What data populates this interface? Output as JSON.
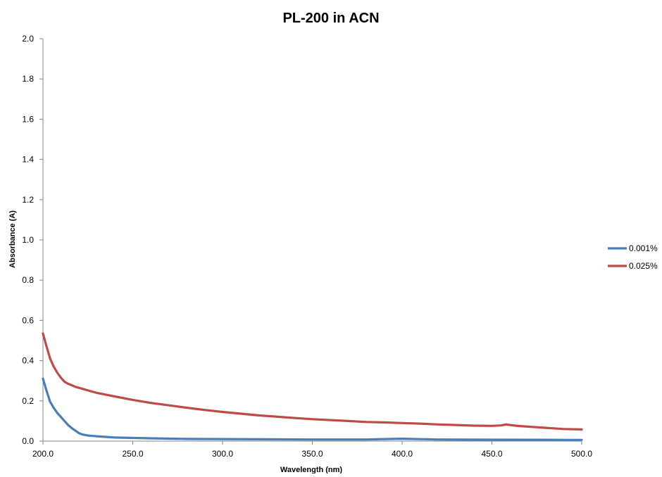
{
  "chart_data": {
    "type": "line",
    "title": "PL-200 in ACN",
    "xlabel": "Wavelength (nm)",
    "ylabel": "Absorbance (A)",
    "xlim": [
      200,
      500
    ],
    "ylim": [
      0,
      2
    ],
    "x_ticks": [
      "200.0",
      "250.0",
      "300.0",
      "350.0",
      "400.0",
      "450.0",
      "500.0"
    ],
    "y_ticks": [
      "0.0",
      "0.2",
      "0.4",
      "0.6",
      "0.8",
      "1.0",
      "1.2",
      "1.4",
      "1.6",
      "1.8",
      "2.0"
    ],
    "grid": false,
    "legend": "right",
    "series": [
      {
        "name": "0.001%",
        "color": "#4a7ebb",
        "x": [
          200,
          202,
          204,
          206,
          208,
          210,
          212,
          214,
          216,
          218,
          220,
          222,
          225,
          230,
          240,
          260,
          280,
          300,
          350,
          380,
          390,
          400,
          420,
          450,
          500
        ],
        "y": [
          0.31,
          0.25,
          0.195,
          0.165,
          0.14,
          0.12,
          0.1,
          0.08,
          0.065,
          0.052,
          0.04,
          0.033,
          0.028,
          0.024,
          0.018,
          0.014,
          0.011,
          0.01,
          0.008,
          0.008,
          0.01,
          0.012,
          0.008,
          0.007,
          0.006
        ]
      },
      {
        "name": "0.025%",
        "color": "#be4b48",
        "x": [
          200,
          202,
          204,
          206,
          208,
          210,
          212,
          214,
          216,
          218,
          220,
          225,
          230,
          240,
          250,
          260,
          270,
          280,
          290,
          300,
          320,
          340,
          350,
          370,
          380,
          390,
          400,
          410,
          420,
          430,
          440,
          450,
          455,
          458,
          460,
          465,
          470,
          480,
          490,
          500
        ],
        "y": [
          0.535,
          0.47,
          0.41,
          0.37,
          0.34,
          0.315,
          0.295,
          0.285,
          0.278,
          0.27,
          0.265,
          0.252,
          0.24,
          0.222,
          0.205,
          0.19,
          0.178,
          0.166,
          0.155,
          0.145,
          0.128,
          0.115,
          0.109,
          0.1,
          0.095,
          0.093,
          0.09,
          0.087,
          0.083,
          0.08,
          0.077,
          0.076,
          0.078,
          0.083,
          0.08,
          0.075,
          0.072,
          0.066,
          0.06,
          0.058
        ]
      }
    ]
  }
}
